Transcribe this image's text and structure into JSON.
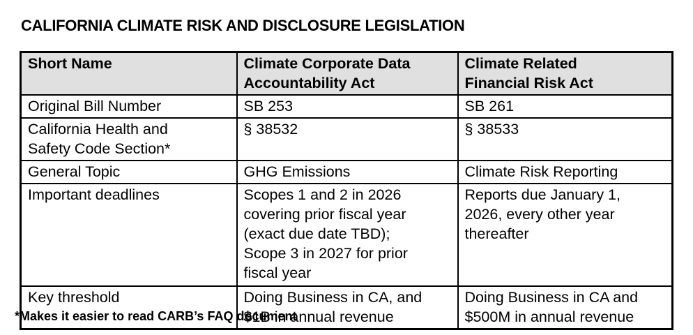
{
  "page": {
    "title": "CALIFORNIA CLIMATE RISK AND DISCLOSURE LEGISLATION",
    "footnote": "*Makes it easier to read CARB’s FAQ document"
  },
  "colors": {
    "header_background": "#e0e0e0",
    "border": "#000000",
    "text": "#000000",
    "page_background": "#ffffff"
  },
  "table": {
    "columns": [
      "Short Name",
      "Climate Corporate Data\nAccountability Act",
      "Climate Related\nFinancial Risk Act"
    ],
    "rows": [
      {
        "label": "Original Bill Number",
        "accountability_act": "SB 253",
        "financial_risk_act": "SB 261"
      },
      {
        "label": "California Health and\nSafety Code Section*",
        "accountability_act": "§ 38532",
        "financial_risk_act": "§ 38533"
      },
      {
        "label": "General Topic",
        "accountability_act": "GHG Emissions",
        "financial_risk_act": "Climate Risk Reporting"
      },
      {
        "label": "Important deadlines",
        "accountability_act": "Scopes 1 and 2 in 2026\ncovering prior fiscal year\n(exact due date TBD);\nScope 3 in 2027 for prior\nfiscal year",
        "financial_risk_act": "Reports due January 1,\n2026, every other year\nthereafter"
      },
      {
        "label": "Key threshold",
        "accountability_act": "Doing Business in CA, and\n$1B in annual revenue",
        "financial_risk_act": "Doing Business in CA and\n$500M in annual revenue"
      }
    ]
  }
}
